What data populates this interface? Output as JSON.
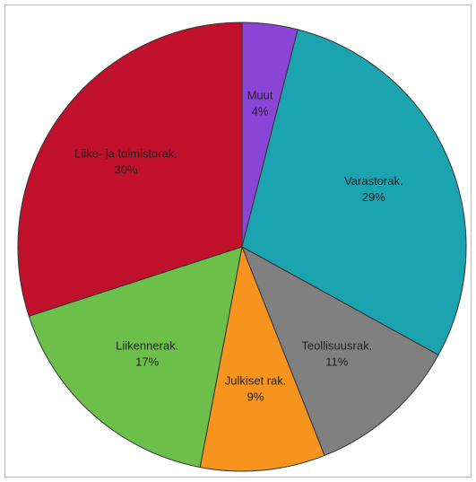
{
  "chart_data": {
    "type": "pie",
    "labels": [
      "Muut",
      "Varastorak.",
      "Teollisuusrak.",
      "Julkiset rak.",
      "Liikennerak.",
      "Liike- ja toimistorak."
    ],
    "values": [
      4,
      29,
      11,
      9,
      17,
      30
    ],
    "value_labels": [
      "4%",
      "29%",
      "11%",
      "9%",
      "17%",
      "30%"
    ],
    "colors": [
      "#8b45d6",
      "#1ba3b0",
      "#808080",
      "#f7941d",
      "#6cc04a",
      "#c0102b"
    ]
  }
}
